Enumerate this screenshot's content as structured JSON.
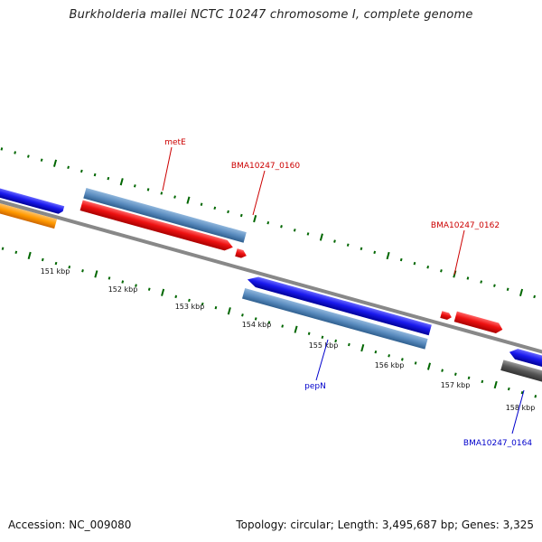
{
  "title": "Burkholderia mallei NCTC 10247 chromosome I, complete genome",
  "footer": {
    "accession": "Accession: NC_009080",
    "stats": "Topology: circular; Length: 3,495,687 bp; Genes: 3,325"
  },
  "ticks": [
    {
      "label": "151 kbp"
    },
    {
      "label": "152 kbp"
    },
    {
      "label": "153 kbp"
    },
    {
      "label": "154 kbp"
    },
    {
      "label": "155 kbp"
    },
    {
      "label": "156 kbp"
    },
    {
      "label": "157 kbp"
    },
    {
      "label": "158 kbp"
    }
  ],
  "gene_labels": [
    {
      "name": "metE",
      "color": "#cc0000"
    },
    {
      "name": "BMA10247_0160",
      "color": "#cc0000"
    },
    {
      "name": "BMA10247_0162",
      "color": "#cc0000"
    },
    {
      "name": "pepN",
      "color": "#0000cc"
    },
    {
      "name": "BMA10247_0164",
      "color": "#0000cc"
    }
  ],
  "colors": {
    "plus_strand_gene": "#ee1111",
    "minus_strand_gene": "#1111dd",
    "steel_blue_feature": "#5a8cbf",
    "orange_feature": "#ff9900",
    "gray_feature": "#555555",
    "backbone": "#888888",
    "tick_green": "#006600",
    "label_red": "#cc0000",
    "label_blue": "#0000cc"
  }
}
